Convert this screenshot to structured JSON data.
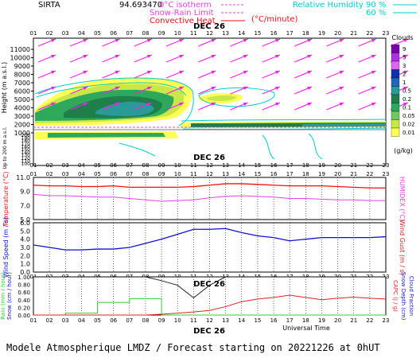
{
  "header": {
    "site": "SIRTA",
    "coords": "94.693470",
    "isotherm_label": "0°C isotherm",
    "snow_rain_label": "Snow-Rain Limit",
    "convective_label": "Convective Heat",
    "convective_units": "(°C/minute)",
    "rh_label": "Relative Humidity",
    "rh_90": "90 %",
    "rh_60": "60 %"
  },
  "hours": [
    "01",
    "02",
    "03",
    "04",
    "05",
    "06",
    "07",
    "08",
    "09",
    "10",
    "11",
    "12",
    "13",
    "14",
    "15",
    "16",
    "17",
    "18",
    "19",
    "20",
    "21",
    "22",
    "23"
  ],
  "date_label": "DEC 26",
  "xlabel": "Universal Time",
  "footer": "Modele Atmospherique LMDZ / Forecast starting on 20221226 at 0hUT",
  "colors": {
    "temperature": "#ee1111",
    "humidex": "#dd44dd",
    "wind_speed": "#1111cc",
    "wind_gust": "#cc2222",
    "rain": "#33cc33",
    "snow_depth": "#222222",
    "capc": "#dd2222",
    "rh": "#00cccc",
    "wind_arrow": "#ee22ee"
  },
  "chart_data": [
    {
      "type": "heatmap",
      "name": "clouds",
      "ylabel": "Height (m a.s.l.)",
      "ylabel_low": "Up to 200 m a.s.l.",
      "yticks_upper": [
        "11000",
        "10000",
        "9000",
        "8000",
        "7000",
        "6000",
        "5000",
        "4000",
        "3000",
        "2000",
        "1000"
      ],
      "yticks_lower": [
        "200",
        "190",
        "180",
        "170",
        "160",
        "150",
        "140",
        "130",
        "120",
        "110",
        "100"
      ],
      "legend_title": "Clouds",
      "legend_units": "(g/kg)",
      "legend_values": [
        "9",
        "5",
        "3",
        "2",
        "1",
        "0.5",
        "0.2",
        "0.1",
        "0.05",
        "0.02",
        "0.01"
      ],
      "legend_colors": [
        "#7a00aa",
        "#aa33dd",
        "#dd66ee",
        "#1133aa",
        "#2266bb",
        "#2a9a99",
        "#1e7f4a",
        "#2ea85a",
        "#70c860",
        "#c8e84a",
        "#ffff55"
      ]
    },
    {
      "type": "line",
      "name": "temperature",
      "ylabel": "Temperature (°C)",
      "y2label": "HUMIDEX (°C)",
      "yticks": [
        "11.0",
        "9.0",
        "7.0",
        "5.0"
      ],
      "ylim": [
        5,
        11
      ],
      "series": [
        {
          "name": "Temperature",
          "values": [
            9.9,
            9.8,
            9.8,
            9.7,
            9.7,
            9.8,
            9.6,
            9.6,
            9.6,
            9.6,
            9.7,
            9.9,
            10.1,
            10.1,
            10.0,
            9.9,
            9.8,
            9.8,
            9.8,
            9.7,
            9.6,
            9.5,
            9.5
          ]
        },
        {
          "name": "HUMIDEX",
          "values": [
            8.6,
            8.4,
            8.4,
            8.3,
            8.2,
            8.2,
            8.0,
            7.8,
            7.6,
            7.7,
            7.8,
            8.1,
            8.3,
            8.4,
            8.3,
            8.2,
            8.0,
            8.0,
            7.9,
            7.8,
            7.8,
            7.7,
            7.7
          ]
        }
      ]
    },
    {
      "type": "line",
      "name": "wind",
      "ylabel": "Wind Speed (m / s)",
      "y2label": "Wind Gust (m / s)",
      "yticks": [
        "6.0",
        "5.0",
        "4.0",
        "3.0",
        "2.0",
        "1.0",
        "0.0"
      ],
      "ylim": [
        0,
        6
      ],
      "series": [
        {
          "name": "Wind Speed",
          "values": [
            3.3,
            3.0,
            2.7,
            2.7,
            2.8,
            2.8,
            3.0,
            3.5,
            4.0,
            4.6,
            5.2,
            5.2,
            5.3,
            4.8,
            4.4,
            4.2,
            3.8,
            4.0,
            4.2,
            4.2,
            4.2,
            4.2,
            4.3
          ]
        }
      ]
    },
    {
      "type": "bar",
      "name": "precipitation",
      "ylabel_rain": "Rain (mm / hour)",
      "ylabel_snow": "Snow (cm / hour)",
      "y2label_capc": "CAPC (J / g)",
      "y2label_snowdepth": "Snow Depth (cm)",
      "y2label_cloudfrac": "Cloud Fraction",
      "yticks": [
        "1.00",
        "0.80",
        "0.60",
        "0.40",
        "0.20",
        "0.00"
      ],
      "ylim": [
        0,
        1
      ],
      "series": [
        {
          "name": "Rain",
          "values": [
            0.0,
            0.0,
            0.05,
            0.05,
            0.33,
            0.33,
            0.43,
            0.43,
            0.0,
            0.0,
            0.0,
            0.0,
            0.0,
            0.0,
            0.0,
            0.0,
            0.0,
            0.0,
            0.0,
            0.0,
            0.0,
            0.0,
            0.0
          ]
        },
        {
          "name": "CAPC",
          "values": [
            0.0,
            0.0,
            0.0,
            0.0,
            0.0,
            0.0,
            0.0,
            0.0,
            0.02,
            0.05,
            0.08,
            0.12,
            0.22,
            0.35,
            0.42,
            0.46,
            0.52,
            0.46,
            0.4,
            0.44,
            0.47,
            0.44,
            0.42
          ]
        },
        {
          "name": "Snow Depth",
          "values": [
            null,
            null,
            null,
            null,
            null,
            null,
            null,
            1.0,
            0.9,
            0.78,
            0.45,
            0.78,
            1.0,
            null,
            null,
            null,
            null,
            null,
            null,
            null,
            null,
            null,
            null
          ]
        }
      ]
    }
  ]
}
